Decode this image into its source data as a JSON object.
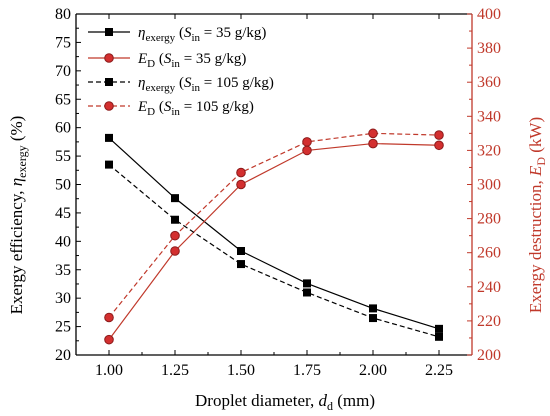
{
  "chart_data": {
    "type": "line",
    "x": [
      1.0,
      1.25,
      1.5,
      1.75,
      2.0,
      2.25
    ],
    "x_tick_labels": [
      "1.00",
      "1.25",
      "1.50",
      "1.75",
      "2.00",
      "2.25"
    ],
    "xlim": [
      0.875,
      2.375
    ],
    "xlabel": {
      "main": "Droplet diameter, ",
      "var": "d",
      "sub": "d",
      "unit": " (mm)"
    },
    "y_left": {
      "label": {
        "main": "Exergy efficiency, ",
        "var": "η",
        "sub": "exergy",
        "unit": " (%)"
      },
      "lim": [
        20,
        80
      ],
      "ticks": [
        20,
        25,
        30,
        35,
        40,
        45,
        50,
        55,
        60,
        65,
        70,
        75,
        80
      ],
      "color": "#000000"
    },
    "y_right": {
      "label": {
        "main": "Exergy destruction, ",
        "var": "E",
        "sub": "D",
        "unit": " (kW)"
      },
      "lim": [
        200,
        400
      ],
      "ticks": [
        200,
        220,
        240,
        260,
        280,
        300,
        320,
        340,
        360,
        380,
        400
      ],
      "color": "#c0392b"
    },
    "series": [
      {
        "axis": "left",
        "dashed": false,
        "marker": "square",
        "color": "#000000",
        "values": [
          58.2,
          47.6,
          38.3,
          32.6,
          28.2,
          24.6
        ],
        "legend": {
          "var": "η",
          "sub": "exergy",
          "cond": " (S",
          "cond_sub": "in",
          "cond_rest": " = 35 g/kg)"
        }
      },
      {
        "axis": "right",
        "dashed": false,
        "marker": "circle",
        "color": "#c0392b",
        "values": [
          209,
          261,
          300,
          320,
          324,
          323
        ],
        "legend": {
          "var": "E",
          "sub": "D",
          "cond": " (S",
          "cond_sub": "in",
          "cond_rest": " = 35 g/kg)"
        }
      },
      {
        "axis": "left",
        "dashed": true,
        "marker": "square",
        "color": "#000000",
        "values": [
          53.5,
          43.8,
          36.0,
          31.0,
          26.5,
          23.2
        ],
        "legend": {
          "var": "η",
          "sub": "exergy",
          "cond": " (S",
          "cond_sub": "in",
          "cond_rest": " = 105 g/kg)"
        }
      },
      {
        "axis": "right",
        "dashed": true,
        "marker": "circle",
        "color": "#c0392b",
        "values": [
          222,
          270,
          307,
          325,
          330,
          329
        ],
        "legend": {
          "var": "E",
          "sub": "D",
          "cond": " (S",
          "cond_sub": "in",
          "cond_rest": " = 105 g/kg)"
        }
      }
    ],
    "legend_position": "top-left",
    "grid": false
  }
}
